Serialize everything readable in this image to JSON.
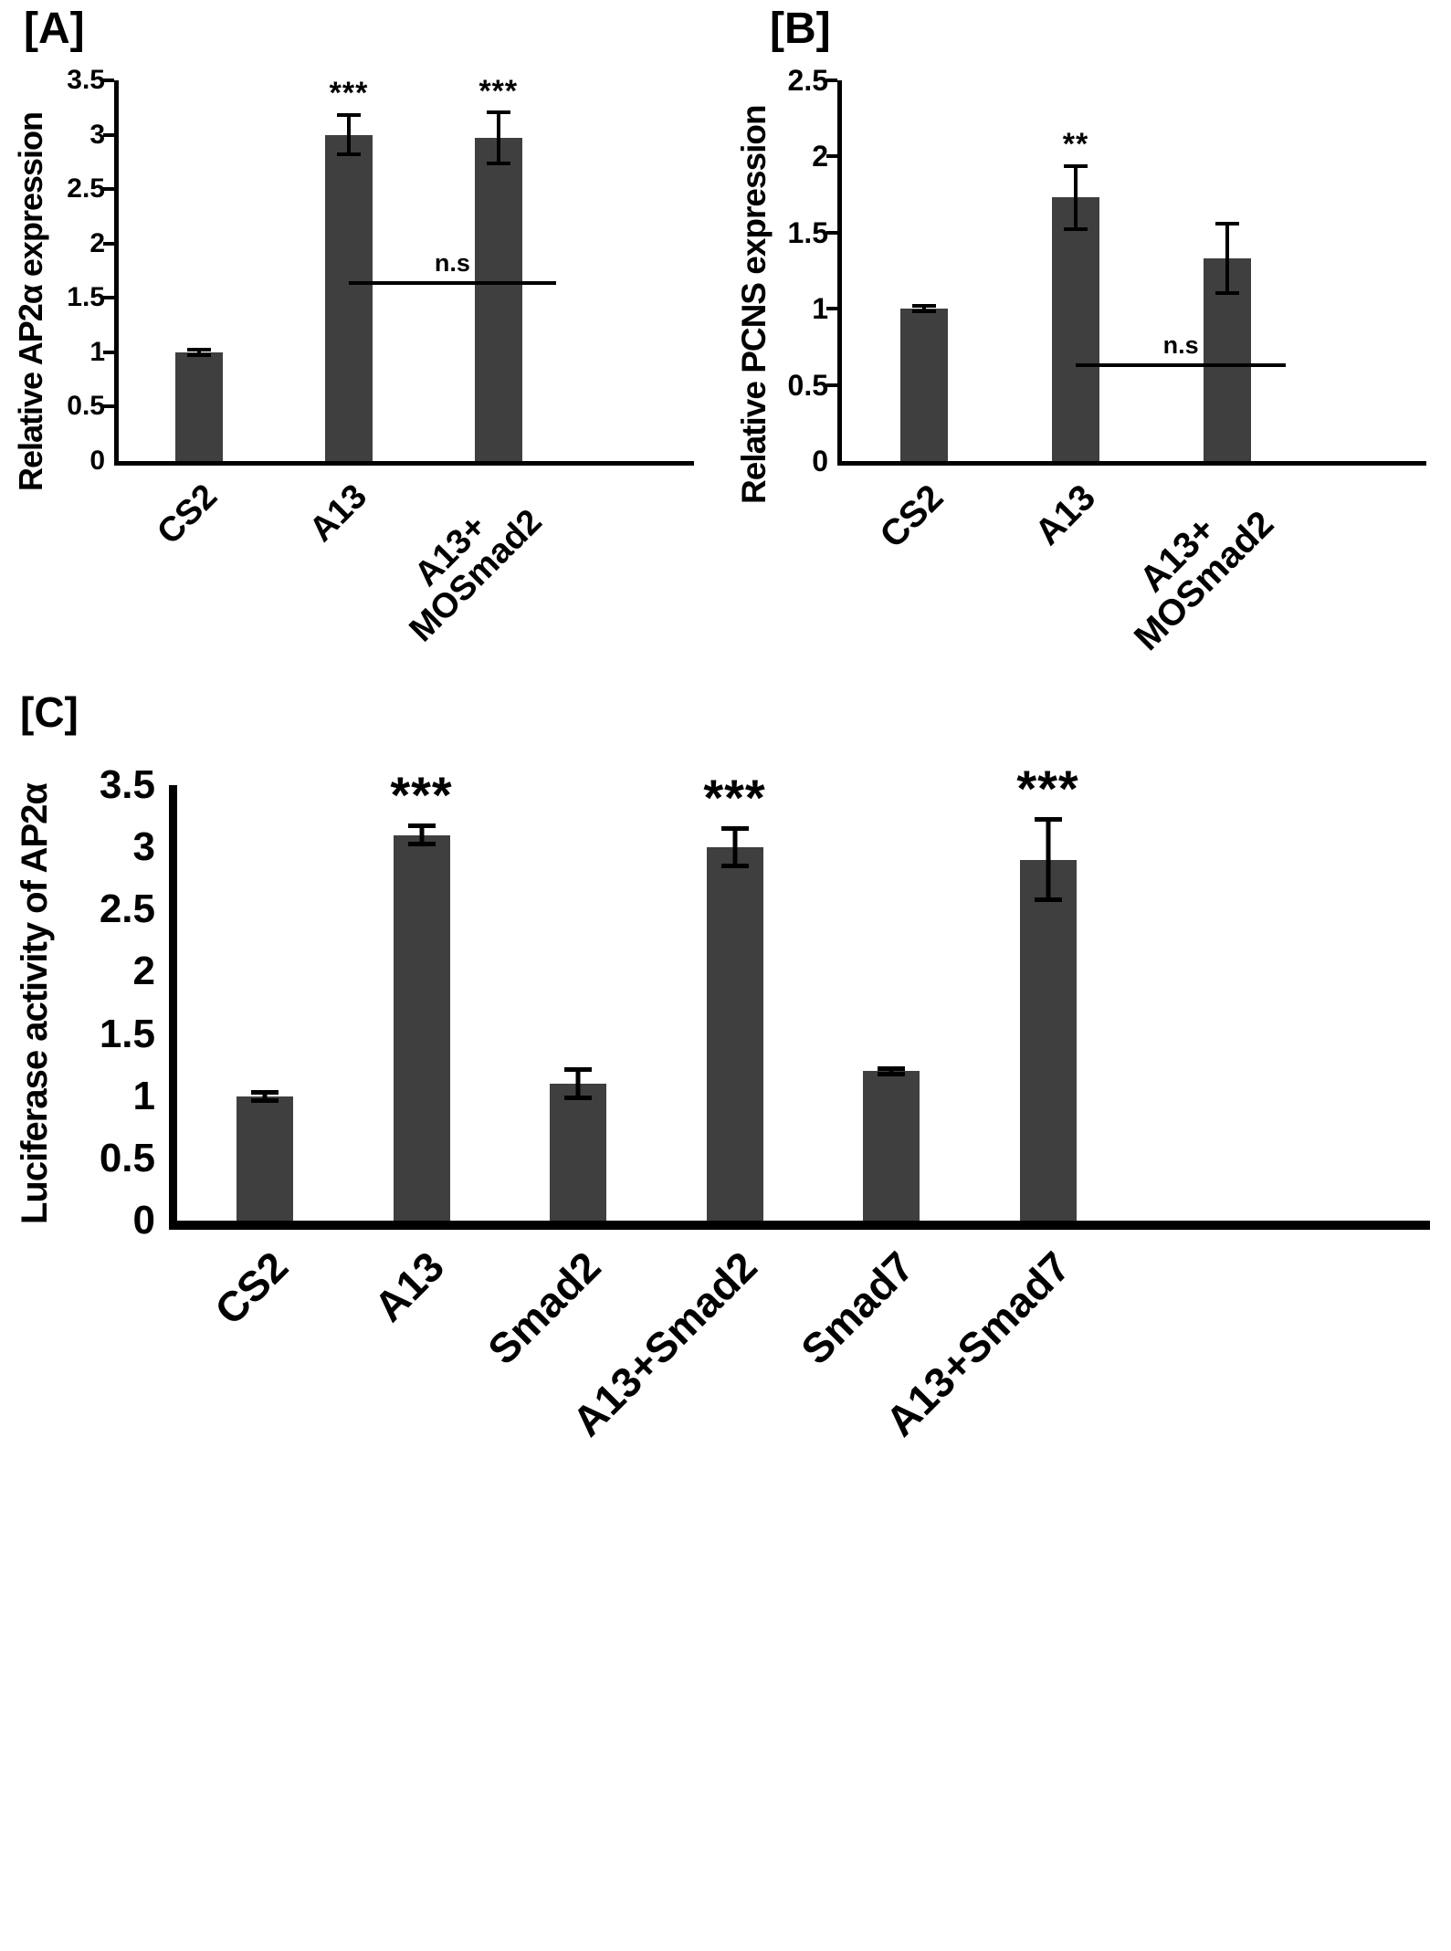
{
  "figure": {
    "background": "#ffffff",
    "bar_color": "#3f3f3f",
    "axis_color": "#000000",
    "text_color": "#000000"
  },
  "chart_data": [
    {
      "type": "bar",
      "panel_label": "[A]",
      "title": "",
      "ylabel": "Relative AP2α expression",
      "xlabel": "",
      "categories": [
        "CS2",
        "A13",
        "A13+\nMOSmad2"
      ],
      "values": [
        1.0,
        3.0,
        2.97
      ],
      "errors": [
        0.04,
        0.2,
        0.25
      ],
      "significance": [
        "",
        "***",
        "***"
      ],
      "ylim": [
        0,
        3.5
      ],
      "yticks": [
        0,
        0.5,
        1,
        1.5,
        2,
        2.5,
        3,
        3.5
      ],
      "grid": false,
      "legend": null,
      "annotation": {
        "label": "n.s",
        "from": 1,
        "to": 2,
        "y": 1.62
      }
    },
    {
      "type": "bar",
      "panel_label": "[B]",
      "title": "",
      "ylabel": "Relative PCNS expression",
      "xlabel": "",
      "categories": [
        "CS2",
        "A13",
        "A13+\nMOSmad2"
      ],
      "values": [
        1.0,
        1.73,
        1.33
      ],
      "errors": [
        0.03,
        0.22,
        0.24
      ],
      "significance": [
        "",
        "**",
        ""
      ],
      "ylim": [
        0,
        2.5
      ],
      "yticks": [
        0,
        0.5,
        1,
        1.5,
        2,
        2.5
      ],
      "grid": false,
      "legend": null,
      "annotation": {
        "label": "n.s",
        "from": 1,
        "to": 2,
        "y": 0.62
      }
    },
    {
      "type": "bar",
      "panel_label": "[C]",
      "title": "",
      "ylabel": "Luciferase activity of AP2α",
      "xlabel": "",
      "categories": [
        "CS2",
        "A13",
        "Smad2",
        "A13+Smad2",
        "Smad7",
        "A13+Smad7"
      ],
      "values": [
        1.0,
        3.1,
        1.1,
        3.0,
        1.2,
        2.9
      ],
      "errors": [
        0.05,
        0.09,
        0.13,
        0.17,
        0.04,
        0.34
      ],
      "significance": [
        "",
        "***",
        "",
        "***",
        "",
        "***"
      ],
      "ylim": [
        0,
        3.5
      ],
      "yticks": [
        0,
        0.5,
        1,
        1.5,
        2,
        2.5,
        3,
        3.5
      ],
      "grid": false,
      "legend": null,
      "annotation": null
    }
  ]
}
